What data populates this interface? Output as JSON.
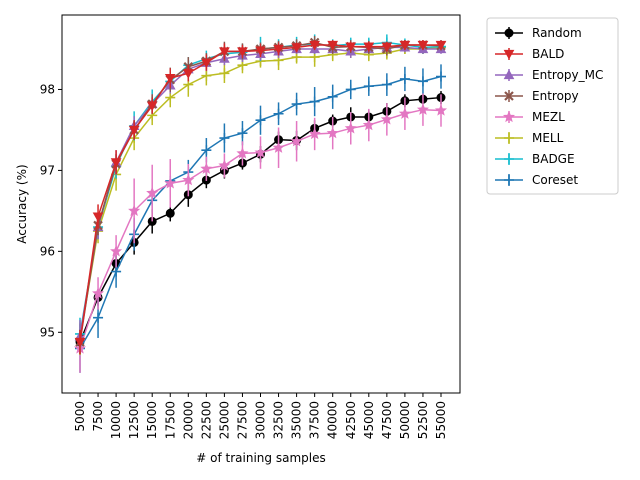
{
  "chart_data": {
    "type": "line",
    "title": "",
    "xlabel": "# of training samples",
    "ylabel": "Accuracy (%)",
    "ylim": [
      94.25,
      98.92
    ],
    "yticks": [
      95,
      96,
      97,
      98
    ],
    "categories": [
      "5000",
      "7500",
      "10000",
      "12500",
      "15000",
      "17500",
      "20000",
      "22500",
      "25000",
      "27500",
      "30000",
      "32500",
      "35000",
      "37500",
      "40000",
      "42500",
      "45000",
      "47500",
      "50000",
      "52500",
      "55000"
    ],
    "legend_position": "outside-right",
    "series": [
      {
        "name": "Random",
        "color": "#000000",
        "marker": "circle",
        "values": [
          94.88,
          95.43,
          95.85,
          96.11,
          96.37,
          96.47,
          96.7,
          96.88,
          97.0,
          97.09,
          97.2,
          97.38,
          97.37,
          97.52,
          97.61,
          97.66,
          97.66,
          97.73,
          97.86,
          97.88,
          97.9
        ],
        "errors": [
          0.06,
          0.1,
          0.1,
          0.15,
          0.15,
          0.1,
          0.15,
          0.1,
          0.1,
          0.08,
          0.1,
          0.1,
          0.12,
          0.1,
          0.08,
          0.12,
          0.08,
          0.1,
          0.08,
          0.06,
          0.08
        ]
      },
      {
        "name": "Coreset",
        "color": "#1f77b4",
        "marker": "plus",
        "values": [
          94.8,
          95.18,
          95.75,
          96.21,
          96.63,
          96.87,
          96.98,
          97.25,
          97.4,
          97.46,
          97.62,
          97.7,
          97.82,
          97.85,
          97.91,
          98.0,
          98.04,
          98.06,
          98.13,
          98.1,
          98.16
        ],
        "errors": [
          0.3,
          0.25,
          0.2,
          0.2,
          0.15,
          0.18,
          0.15,
          0.15,
          0.18,
          0.15,
          0.18,
          0.14,
          0.14,
          0.18,
          0.15,
          0.12,
          0.12,
          0.14,
          0.15,
          0.16,
          0.15
        ]
      },
      {
        "name": "MEZL",
        "color": "#e377c2",
        "marker": "star",
        "values": [
          94.8,
          95.48,
          96.0,
          96.5,
          96.72,
          96.84,
          96.88,
          97.02,
          97.06,
          97.21,
          97.22,
          97.28,
          97.36,
          97.45,
          97.46,
          97.52,
          97.56,
          97.63,
          97.7,
          97.75,
          97.74
        ],
        "errors": [
          0.3,
          0.2,
          0.2,
          0.4,
          0.35,
          0.3,
          0.2,
          0.15,
          0.15,
          0.15,
          0.2,
          0.25,
          0.25,
          0.2,
          0.2,
          0.2,
          0.2,
          0.2,
          0.2,
          0.2,
          0.2
        ]
      },
      {
        "name": "MELL",
        "color": "#bcbd22",
        "marker": "plus",
        "values": [
          94.92,
          96.25,
          96.95,
          97.4,
          97.68,
          97.9,
          98.06,
          98.17,
          98.2,
          98.3,
          98.35,
          98.36,
          98.4,
          98.4,
          98.43,
          98.45,
          98.43,
          98.45,
          98.5,
          98.5,
          98.52
        ],
        "errors": [
          0.2,
          0.15,
          0.2,
          0.15,
          0.12,
          0.12,
          0.15,
          0.12,
          0.12,
          0.1,
          0.08,
          0.12,
          0.08,
          0.12,
          0.08,
          0.06,
          0.08,
          0.08,
          0.06,
          0.06,
          0.06
        ]
      },
      {
        "name": "BADGE",
        "color": "#17becf",
        "marker": "plus",
        "values": [
          94.98,
          96.3,
          97.05,
          97.55,
          97.85,
          98.1,
          98.3,
          98.38,
          98.44,
          98.46,
          98.5,
          98.52,
          98.55,
          98.56,
          98.54,
          98.56,
          98.56,
          98.58,
          98.55,
          98.52,
          98.53
        ],
        "errors": [
          0.2,
          0.15,
          0.15,
          0.18,
          0.15,
          0.12,
          0.1,
          0.1,
          0.1,
          0.1,
          0.15,
          0.1,
          0.1,
          0.12,
          0.08,
          0.08,
          0.08,
          0.1,
          0.08,
          0.08,
          0.08
        ]
      },
      {
        "name": "Entropy_MC",
        "color": "#9467bd",
        "marker": "triangle-up",
        "values": [
          94.95,
          96.3,
          97.1,
          97.55,
          97.82,
          98.05,
          98.25,
          98.33,
          98.38,
          98.42,
          98.44,
          98.47,
          98.5,
          98.5,
          98.5,
          98.47,
          98.5,
          98.52,
          98.52,
          98.5,
          98.5
        ],
        "errors": [
          0.2,
          0.15,
          0.15,
          0.12,
          0.12,
          0.1,
          0.1,
          0.1,
          0.08,
          0.08,
          0.08,
          0.08,
          0.06,
          0.06,
          0.06,
          0.08,
          0.06,
          0.06,
          0.06,
          0.06,
          0.06
        ]
      },
      {
        "name": "Entropy",
        "color": "#8c564b",
        "marker": "x",
        "values": [
          94.88,
          96.32,
          97.08,
          97.5,
          97.82,
          98.12,
          98.28,
          98.35,
          98.47,
          98.47,
          98.5,
          98.52,
          98.54,
          98.58,
          98.52,
          98.53,
          98.52,
          98.5,
          98.55,
          98.55,
          98.54
        ],
        "errors": [
          0.15,
          0.12,
          0.12,
          0.12,
          0.12,
          0.15,
          0.12,
          0.1,
          0.12,
          0.1,
          0.08,
          0.08,
          0.08,
          0.08,
          0.08,
          0.08,
          0.08,
          0.08,
          0.06,
          0.06,
          0.06
        ]
      },
      {
        "name": "BALD",
        "color": "#d62728",
        "marker": "triangle-down",
        "values": [
          94.88,
          96.43,
          97.1,
          97.5,
          97.8,
          98.14,
          98.2,
          98.33,
          98.47,
          98.47,
          98.48,
          98.5,
          98.52,
          98.55,
          98.55,
          98.53,
          98.53,
          98.53,
          98.55,
          98.55,
          98.55
        ],
        "errors": [
          0.15,
          0.15,
          0.15,
          0.12,
          0.1,
          0.12,
          0.1,
          0.1,
          0.1,
          0.08,
          0.08,
          0.08,
          0.06,
          0.06,
          0.06,
          0.06,
          0.06,
          0.06,
          0.06,
          0.06,
          0.06
        ]
      }
    ],
    "legend_order": [
      "Random",
      "BALD",
      "Entropy_MC",
      "Entropy",
      "MEZL",
      "MELL",
      "BADGE",
      "Coreset"
    ]
  }
}
